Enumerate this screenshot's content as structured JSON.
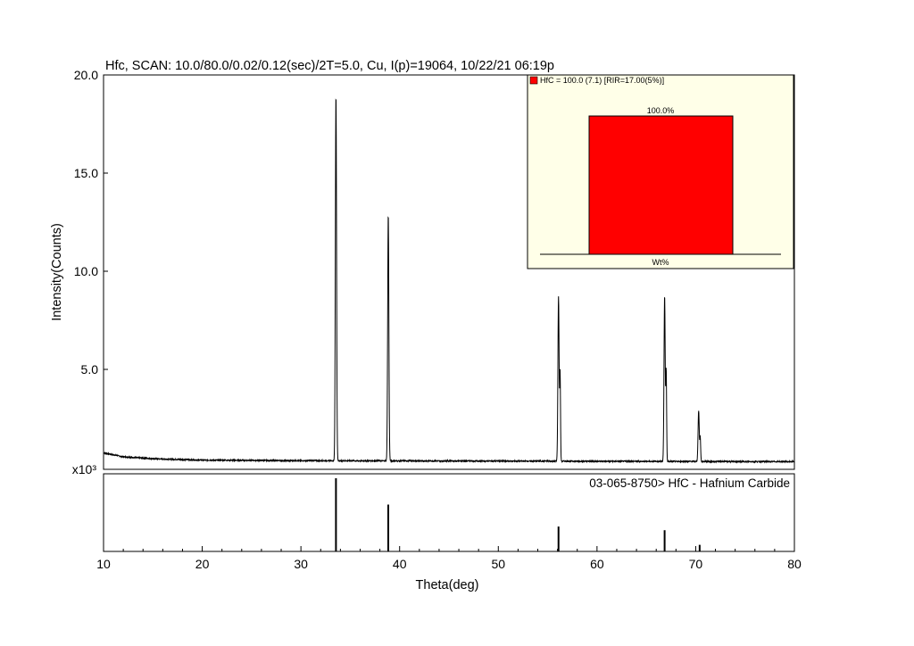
{
  "chart_data": {
    "type": "line",
    "title": "Hfc, SCAN: 10.0/80.0/0.02/0.12(sec)/2T=5.0, Cu, I(p)=19064, 10/22/21 06:19p",
    "xlabel": "Theta(deg)",
    "ylabel": "Intensity(Counts)",
    "y_multiplier_label": "x10³",
    "xlim": [
      10,
      80
    ],
    "ylim": [
      0,
      20.0
    ],
    "x_ticks": [
      "10",
      "20",
      "30",
      "40",
      "50",
      "60",
      "70",
      "80"
    ],
    "y_ticks": [
      "5.0",
      "10.0",
      "15.0",
      "20.0"
    ],
    "grid": false,
    "series": [
      {
        "background": [
          [
            10,
            0.75
          ],
          [
            12,
            0.55
          ],
          [
            15,
            0.45
          ],
          [
            20,
            0.38
          ],
          [
            30,
            0.35
          ],
          [
            50,
            0.33
          ],
          [
            80,
            0.3
          ]
        ],
        "peaks": [
          {
            "x": 33.55,
            "y": 19.0
          },
          {
            "x": 38.85,
            "y": 12.9
          },
          {
            "x": 56.1,
            "y": 8.7,
            "shoulder": 5.0
          },
          {
            "x": 66.85,
            "y": 8.75,
            "shoulder": 5.1
          },
          {
            "x": 70.3,
            "y": 2.9,
            "shoulder": 1.6
          }
        ]
      }
    ],
    "reference": {
      "label": "03-065-8750> HfC - Hafnium Carbide",
      "peaks": [
        {
          "x": 33.55,
          "y": 100
        },
        {
          "x": 38.85,
          "y": 64
        },
        {
          "x": 56.1,
          "y": 34
        },
        {
          "x": 66.85,
          "y": 29
        },
        {
          "x": 70.4,
          "y": 9
        }
      ]
    },
    "inset": {
      "legend": "HfC = 100.0 (7.1) [RIR=17.00(5%)]",
      "bar_label": "100.0%",
      "value": 100.0,
      "xlabel": "Wt%",
      "bar_color": "#ff0000",
      "background_color": "#ffffe8"
    }
  }
}
